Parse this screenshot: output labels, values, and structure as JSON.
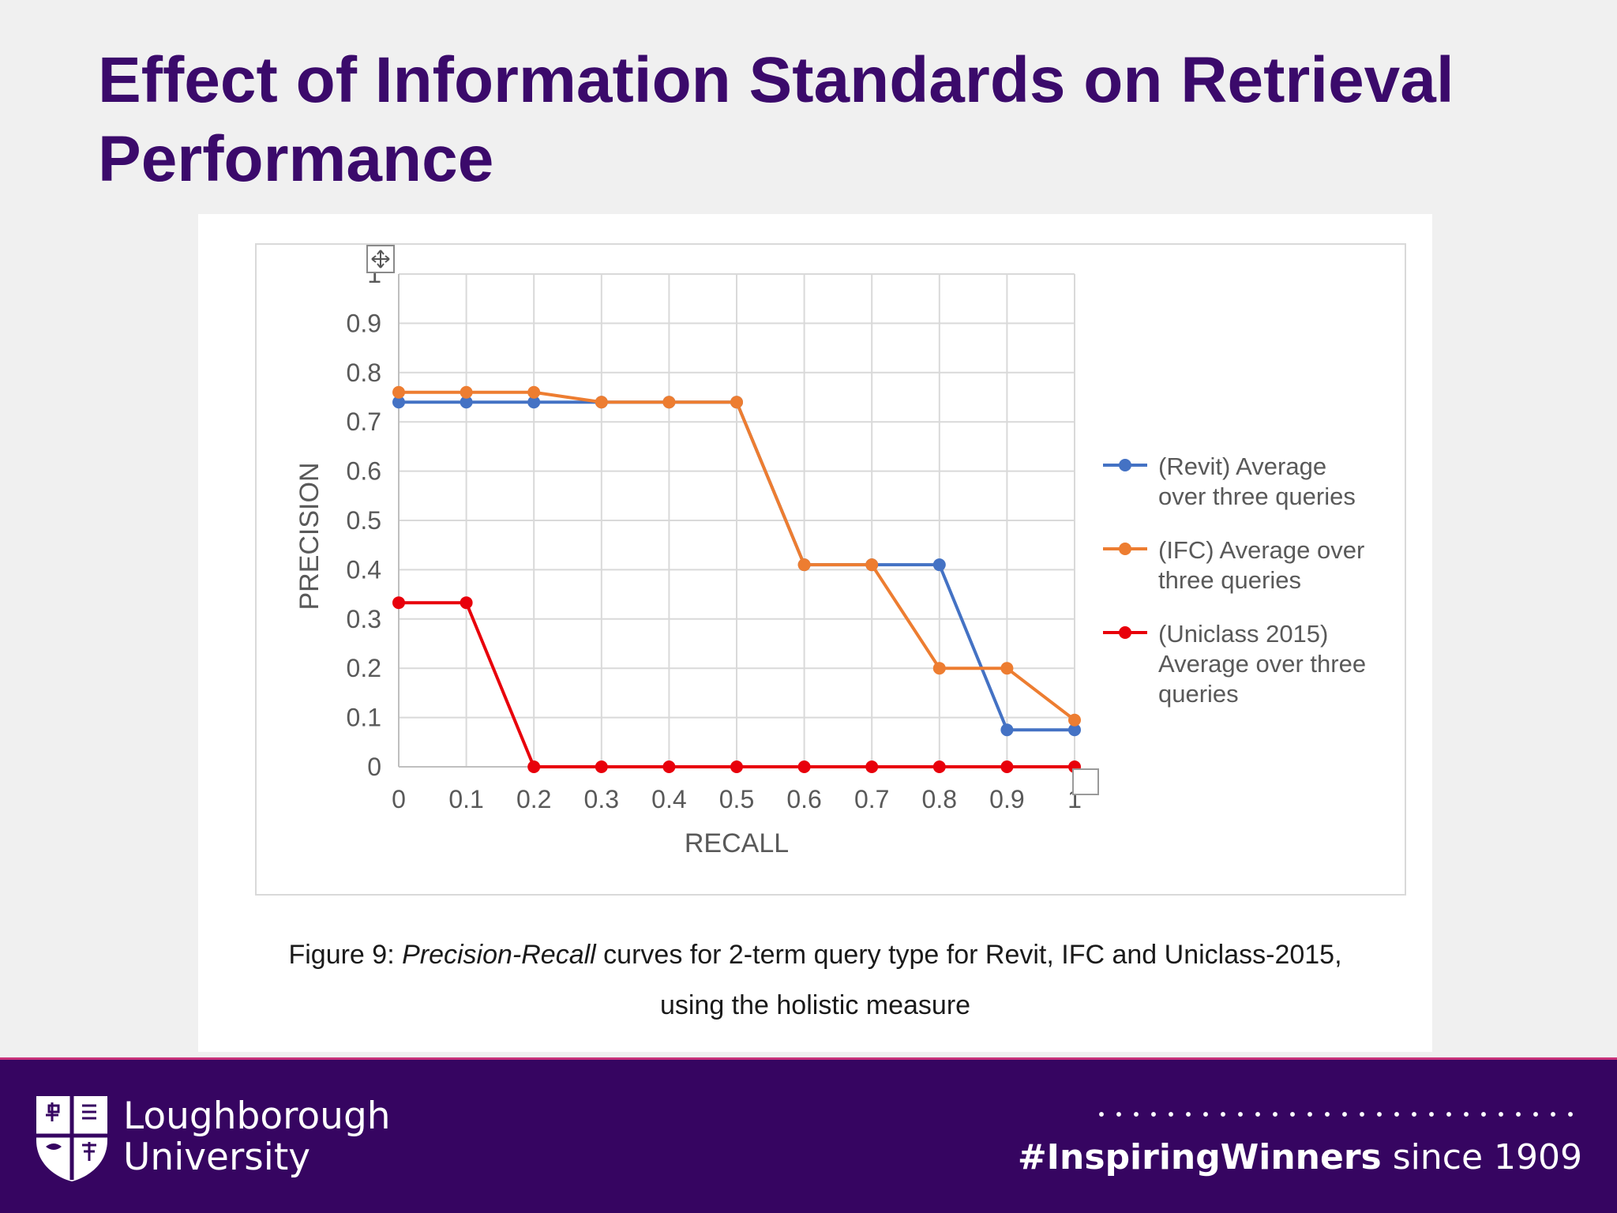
{
  "slide": {
    "title": "Effect of Information Standards on Retrieval Performance"
  },
  "figure": {
    "caption_prefix": "Figure 9: ",
    "caption_emph": "Precision-Recall",
    "caption_rest_line1": " curves for 2-term query type for Revit, IFC and Uniclass-2015,",
    "caption_line2": "using the holistic measure"
  },
  "chart_data": {
    "type": "line",
    "title": "",
    "xlabel": "RECALL",
    "ylabel": "PRECISION",
    "xlim": [
      0,
      1
    ],
    "ylim": [
      0,
      1
    ],
    "x_ticks": [
      "0",
      "0.1",
      "0.2",
      "0.3",
      "0.4",
      "0.5",
      "0.6",
      "0.7",
      "0.8",
      "0.9",
      "1"
    ],
    "y_ticks": [
      "0",
      "0.1",
      "0.2",
      "0.3",
      "0.4",
      "0.5",
      "0.6",
      "0.7",
      "0.8",
      "0.9",
      "1"
    ],
    "grid": true,
    "legend_position": "right",
    "x": [
      0,
      0.1,
      0.2,
      0.3,
      0.4,
      0.5,
      0.6,
      0.7,
      0.8,
      0.9,
      1
    ],
    "series": [
      {
        "name": "(Revit) Average over three queries",
        "legend_lines": [
          "(Revit) Average",
          "over three queries"
        ],
        "color": "#4472c4",
        "values": [
          0.74,
          0.74,
          0.74,
          0.74,
          0.74,
          0.74,
          0.41,
          0.41,
          0.41,
          0.075,
          0.075
        ]
      },
      {
        "name": "(IFC) Average over three queries",
        "legend_lines": [
          "(IFC) Average over",
          "three queries"
        ],
        "color": "#ed7d31",
        "values": [
          0.76,
          0.76,
          0.76,
          0.74,
          0.74,
          0.74,
          0.41,
          0.41,
          0.2,
          0.2,
          0.095
        ]
      },
      {
        "name": "(Uniclass 2015) Average over three queries",
        "legend_lines": [
          "(Uniclass 2015)",
          "Average over three",
          "queries"
        ],
        "color": "#e8000b",
        "values": [
          0.333,
          0.333,
          0,
          0,
          0,
          0,
          0,
          0,
          0,
          0,
          0
        ]
      }
    ]
  },
  "footer": {
    "university_line1": "Loughborough",
    "university_line2": "University",
    "tagline_hashtag": "#InspiringWinners",
    "tagline_rest": " since 1909",
    "background_color": "#360561"
  }
}
